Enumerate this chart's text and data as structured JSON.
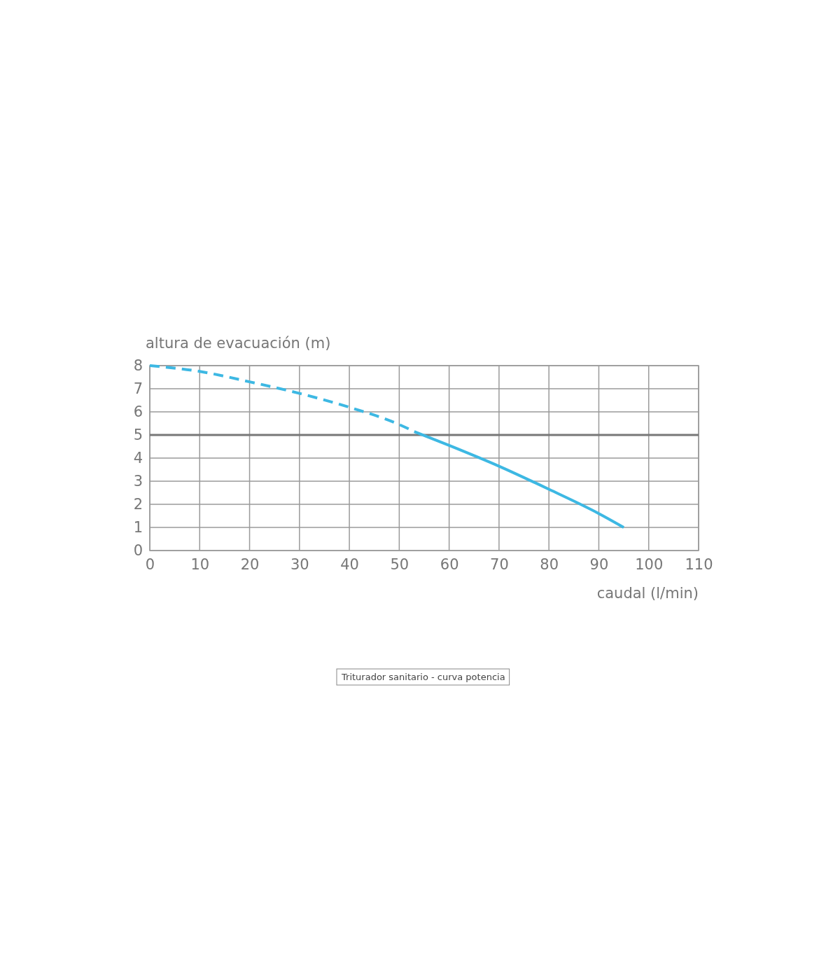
{
  "chart_data": {
    "type": "line",
    "xlabel": "caudal (l/min)",
    "ylabel": "altura de evacuación (m)",
    "xlim": [
      0,
      110
    ],
    "ylim": [
      0,
      8
    ],
    "xticks": [
      0,
      10,
      20,
      30,
      40,
      50,
      60,
      70,
      80,
      90,
      100,
      110
    ],
    "yticks": [
      0,
      1,
      2,
      3,
      4,
      5,
      6,
      7,
      8
    ],
    "grid": true,
    "marker": "none",
    "series": [
      {
        "color": "#3db8e3",
        "line_style": "dashed",
        "x": [
          0,
          10,
          20,
          30,
          40,
          50,
          53
        ],
        "values": [
          8,
          7.75,
          7.3,
          6.8,
          6.2,
          5.45,
          5.15
        ]
      },
      {
        "color": "#3db8e3",
        "line_style": "solid",
        "x": [
          53,
          60,
          70,
          80,
          90,
          95
        ],
        "values": [
          5.15,
          4.55,
          3.65,
          2.65,
          1.6,
          1.0
        ]
      }
    ],
    "ref_lines": [
      {
        "axis": "y",
        "value": 5,
        "color": "#777777",
        "line_style": "solid"
      }
    ],
    "annotations": [
      "Triturador sanitario - curva potencia"
    ]
  }
}
